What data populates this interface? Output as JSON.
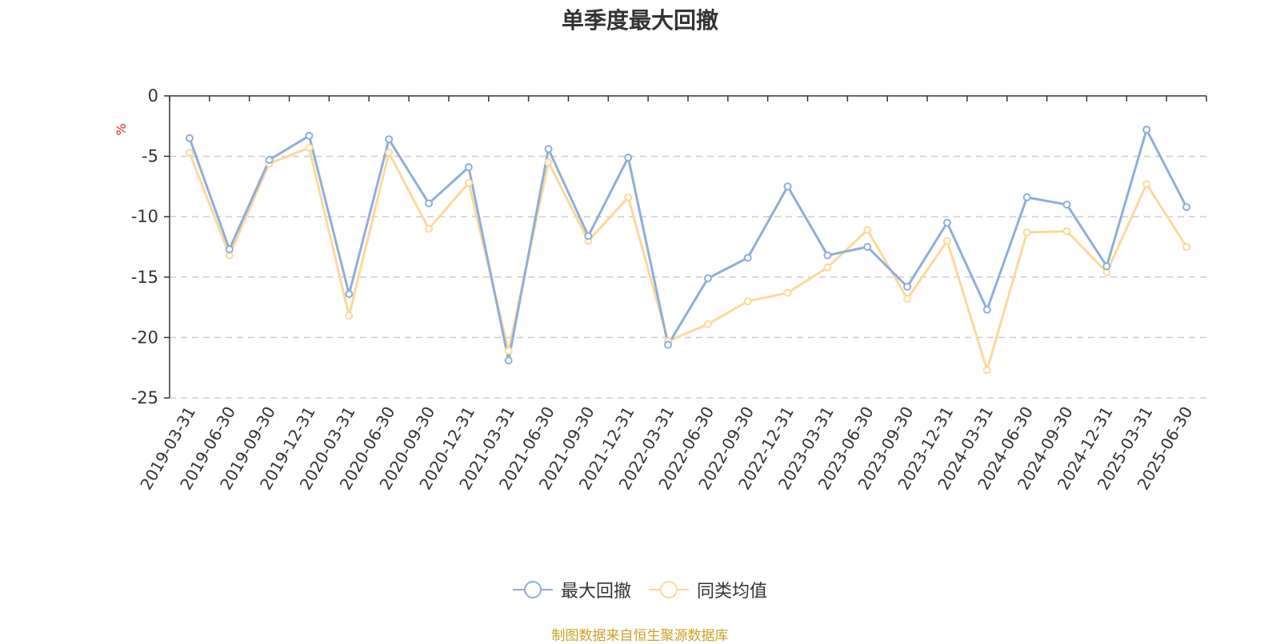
{
  "chart_data": {
    "type": "line",
    "title": "单季度最大回撤",
    "ylabel": "%",
    "ylim": [
      -25,
      0
    ],
    "yticks": [
      0,
      -5,
      -10,
      -15,
      -20,
      -25
    ],
    "grid": true,
    "legend_position": "bottom-center",
    "categories": [
      "2019-03-31",
      "2019-06-30",
      "2019-09-30",
      "2019-12-31",
      "2020-03-31",
      "2020-06-30",
      "2020-09-30",
      "2020-12-31",
      "2021-03-31",
      "2021-06-30",
      "2021-09-30",
      "2021-12-31",
      "2022-03-31",
      "2022-06-30",
      "2022-09-30",
      "2022-12-31",
      "2023-03-31",
      "2023-06-30",
      "2023-09-30",
      "2023-12-31",
      "2024-03-31",
      "2024-06-30",
      "2024-09-30",
      "2024-12-31",
      "2025-03-31",
      "2025-06-30"
    ],
    "series": [
      {
        "name": "最大回撤",
        "color": "#8eaedb",
        "values": [
          -3.5,
          -12.7,
          -5.3,
          -3.3,
          -16.4,
          -3.6,
          -8.9,
          -5.9,
          -21.9,
          -4.4,
          -11.6,
          -5.1,
          -20.6,
          -15.1,
          -13.4,
          -7.5,
          -13.2,
          -12.5,
          -15.8,
          -10.5,
          -17.7,
          -8.4,
          -9.0,
          -14.1,
          -2.8,
          -9.2
        ]
      },
      {
        "name": "同类均值",
        "color": "#fbd999",
        "values": [
          -4.7,
          -13.2,
          -5.6,
          -4.3,
          -18.2,
          -4.7,
          -11.0,
          -7.2,
          -21.1,
          -5.5,
          -12.0,
          -8.4,
          -20.3,
          -18.9,
          -17.0,
          -16.3,
          -14.2,
          -11.1,
          -16.8,
          -12.0,
          -22.7,
          -11.3,
          -11.2,
          -14.6,
          -7.3,
          -12.5
        ]
      }
    ],
    "source_note": "制图数据来自恒生聚源数据库"
  }
}
